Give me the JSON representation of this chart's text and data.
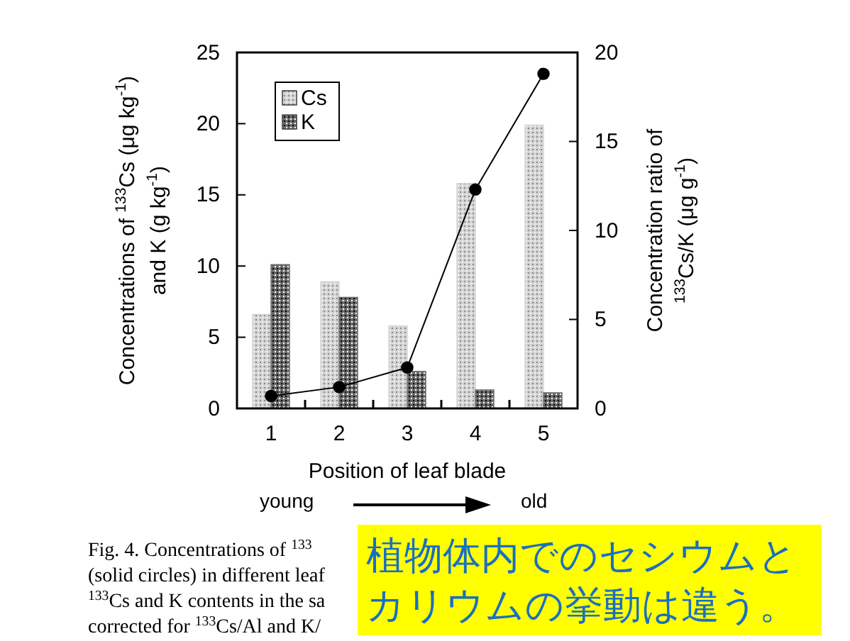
{
  "chart_data": {
    "type": "bar",
    "categories": [
      "1",
      "2",
      "3",
      "4",
      "5"
    ],
    "xlabel": "Position of leaf blade",
    "ylabel": "Concentrations of $^{133}$Cs (μg kg$^{-1}$)\nand K (g kg$^{-1}$)",
    "y2label": "Concentration ratio of\n$^{133}$Cs/K (μg g$^{-1}$)",
    "ylim": [
      0,
      25
    ],
    "yticks": [
      0,
      5,
      10,
      15,
      20,
      25
    ],
    "y2lim": [
      0,
      20
    ],
    "y2ticks": [
      0,
      5,
      10,
      15,
      20
    ],
    "legend": "top left",
    "grid": false,
    "series": [
      {
        "name": "Cs",
        "color": "#d4d4d4",
        "values": [
          6.6,
          8.9,
          5.8,
          15.8,
          19.9
        ]
      },
      {
        "name": "K",
        "color": "#6a6a6a",
        "values": [
          10.1,
          7.8,
          2.6,
          1.3,
          1.1
        ]
      },
      {
        "type": "line",
        "axis": "y2",
        "color": "#000000",
        "marker": "circle",
        "values": [
          0.7,
          1.2,
          2.3,
          12.3,
          18.8
        ]
      }
    ],
    "annotations": [
      "young",
      "old",
      "Fig. 4. Concentrations of $^{133}$",
      "(solid circles) in different leaf",
      "$^{133}$Cs and K contents in the sa",
      "corrected for $^{133}$Cs/Al and K/",
      "植物体内でのセシウムとカリウムの挙動は違う。"
    ]
  }
}
